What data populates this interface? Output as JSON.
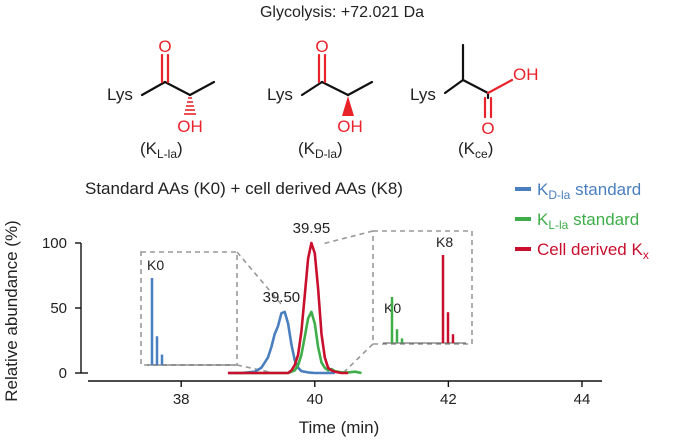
{
  "header": {
    "title": "Glycolysis: +72.021 Da"
  },
  "structures": [
    {
      "lys": "Lys",
      "o": "O",
      "oh": "OH",
      "label_main": "(K",
      "label_sub": "L-la",
      "label_close": ")"
    },
    {
      "lys": "Lys",
      "o": "O",
      "oh": "OH",
      "label_main": "(K",
      "label_sub": "D-la",
      "label_close": ")"
    },
    {
      "lys": "Lys",
      "o": "O",
      "oh": "OH",
      "label_main": "(K",
      "label_sub": "ce",
      "label_close": ")"
    }
  ],
  "chart_data": {
    "type": "line",
    "title": "Standard AAs (K0) + cell derived AAs (K8)",
    "xlabel": "Time (min)",
    "ylabel": "Relative abundance (%)",
    "xlim": [
      36.5,
      44.3
    ],
    "ylim": [
      0,
      100
    ],
    "xticks": [
      38,
      40,
      42,
      44
    ],
    "yticks": [
      0,
      50,
      100
    ],
    "legend": [
      {
        "main": "K",
        "sub": "D-la",
        "suffix": " standard",
        "color": "#4a7fbf"
      },
      {
        "main": "K",
        "sub": "L-la",
        "suffix": " standard",
        "color": "#3fae4a"
      },
      {
        "main": "Cell derived K",
        "sub": "x",
        "suffix": "",
        "color": "#c8102e"
      }
    ],
    "series": [
      {
        "color": "#4a7fbf",
        "x": [
          38.7,
          38.9,
          39.1,
          39.2,
          39.3,
          39.35,
          39.4,
          39.45,
          39.5,
          39.55,
          39.6,
          39.65,
          39.7,
          39.75,
          39.8,
          39.9,
          40.0,
          40.1,
          40.3
        ],
        "y": [
          0,
          0,
          1,
          4,
          12,
          20,
          30,
          36,
          46,
          47,
          38,
          22,
          10,
          4,
          1.5,
          0.5,
          0,
          0,
          0
        ]
      },
      {
        "color": "#3fae4a",
        "x": [
          38.8,
          39.6,
          39.7,
          39.75,
          39.8,
          39.85,
          39.9,
          39.95,
          40.0,
          40.05,
          40.1,
          40.15,
          40.2,
          40.25,
          40.3,
          40.4,
          40.5,
          40.6,
          40.7
        ],
        "y": [
          0,
          0,
          2,
          6,
          14,
          28,
          42,
          47,
          38,
          20,
          8,
          4,
          2,
          3,
          1.5,
          0.5,
          0.5,
          1,
          0
        ]
      },
      {
        "color": "#c8102e",
        "x": [
          38.7,
          39.6,
          39.65,
          39.7,
          39.75,
          39.8,
          39.85,
          39.9,
          39.95,
          40.0,
          40.05,
          40.1,
          40.15,
          40.2,
          40.25,
          40.3,
          40.4,
          40.5
        ],
        "y": [
          0,
          0,
          2,
          6,
          14,
          32,
          60,
          88,
          100,
          92,
          65,
          30,
          12,
          4,
          2,
          1,
          0,
          0
        ]
      }
    ],
    "peak_labels": [
      {
        "text": "39.50",
        "x": 39.5,
        "y": 47
      },
      {
        "text": "39.95",
        "x": 39.95,
        "y": 100
      }
    ],
    "insets": [
      {
        "label": "K0",
        "bars": [
          {
            "color": "#4a7fbf",
            "heights": [
              1.0,
              0.33,
              0.12
            ]
          }
        ]
      },
      {
        "label_left": "K0",
        "label_right": "K8",
        "bars_left": {
          "color": "#3fae4a",
          "heights": [
            1.0,
            0.3,
            0.1
          ]
        },
        "bars_right": {
          "color": "#c8102e",
          "heights": [
            1.0,
            0.35,
            0.1
          ]
        }
      }
    ]
  }
}
